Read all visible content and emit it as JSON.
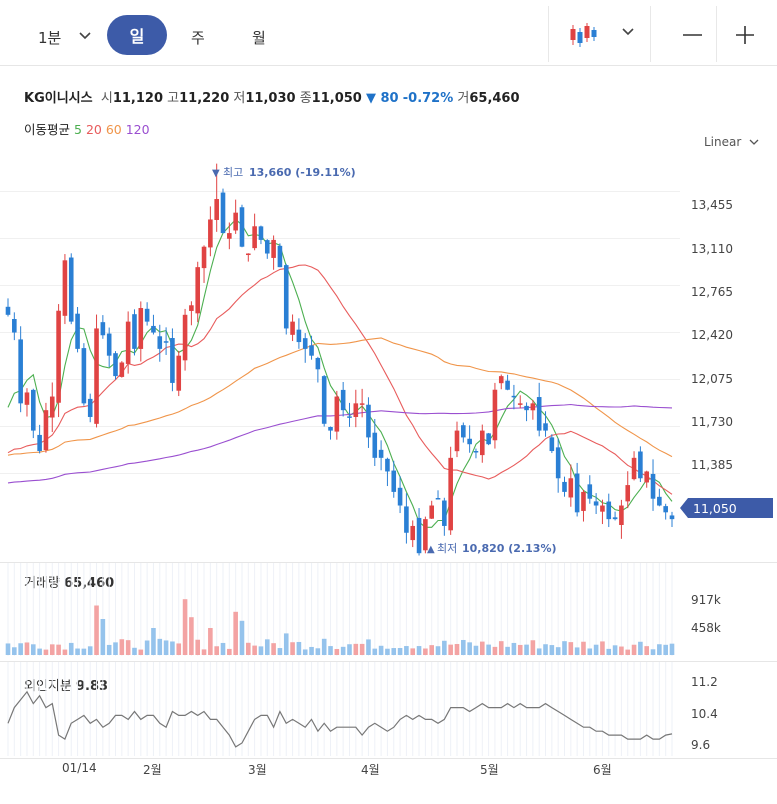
{
  "toolbar": {
    "interval": "1분",
    "periods": [
      "일",
      "주",
      "월"
    ],
    "active_period": "일",
    "zoom_out": "—",
    "zoom_in": "+"
  },
  "quote": {
    "name": "KG이니시스",
    "open_label": "시",
    "open": "11,120",
    "high_label": "고",
    "high": "11,220",
    "low_label": "저",
    "low": "11,030",
    "close_label": "종",
    "close": "11,050",
    "change": "▼ 80",
    "change_pct": "-0.72%",
    "volume_label": "거",
    "volume": "65,460"
  },
  "moving_average": {
    "label": "이동평균",
    "periods": [
      {
        "value": "5",
        "color": "#4caf50"
      },
      {
        "value": "20",
        "color": "#e85c5c"
      },
      {
        "value": "60",
        "color": "#f0954a"
      },
      {
        "value": "120",
        "color": "#9a4fd0"
      }
    ]
  },
  "scale_mode": "Linear",
  "price_axis": [
    "13,455",
    "13,110",
    "12,765",
    "12,420",
    "12,075",
    "11,730",
    "11,385"
  ],
  "current_price": "11,050",
  "annotations": {
    "high": {
      "arrow": "▼",
      "label": "최고",
      "value": "13,660 (-19.11%)"
    },
    "low": {
      "arrow": "▲",
      "label": "최저",
      "value": "10,820 (2.13%)"
    }
  },
  "volume_pane": {
    "label": "거래량",
    "value": "65,460",
    "axis": [
      "917k",
      "458k"
    ]
  },
  "foreign_pane": {
    "label": "외인지분",
    "value": "9.83",
    "axis": [
      "11.2",
      "10.4",
      "9.6"
    ]
  },
  "x_axis": [
    "01/14",
    "2월",
    "3월",
    "4월",
    "5월",
    "6월"
  ],
  "colors": {
    "up": "#e04343",
    "down": "#2a7fd4",
    "accent": "#3d5ba8",
    "badge": "#3d5ba8"
  },
  "chart_data": {
    "type": "candlestick",
    "y_range": [
      10750,
      13760
    ],
    "high_point": 13660,
    "low_point": 10820,
    "closes": [
      12550,
      12420,
      11900,
      11980,
      11700,
      11550,
      11850,
      11950,
      12580,
      12950,
      12500,
      12300,
      11900,
      11800,
      12450,
      12400,
      12250,
      12100,
      12200,
      12500,
      12300,
      12600,
      12500,
      12420,
      12300,
      12350,
      12050,
      12250,
      12550,
      12620,
      12900,
      13050,
      13250,
      13400,
      13150,
      13150,
      13300,
      13050,
      13000,
      13200,
      13100,
      13000,
      13100,
      12900,
      12450,
      12500,
      12350,
      12300,
      12250,
      12150,
      11750,
      11700,
      11950,
      11850,
      11800,
      11900,
      11900,
      11650,
      11500,
      11500,
      11400,
      11250,
      11150,
      10950,
      11000,
      10800,
      11050,
      11150,
      11200,
      11000,
      11500,
      11700,
      11650,
      11600,
      11550,
      11700,
      11600,
      12000,
      12100,
      12000,
      11950,
      11900,
      11850,
      11900,
      11700,
      11700,
      11550,
      11350,
      11250,
      11350,
      11100,
      11250,
      11200,
      11150,
      11150,
      11050,
      11050,
      11150,
      11300,
      11500,
      11350,
      11400,
      11200,
      11150,
      11100,
      11050
    ]
  }
}
